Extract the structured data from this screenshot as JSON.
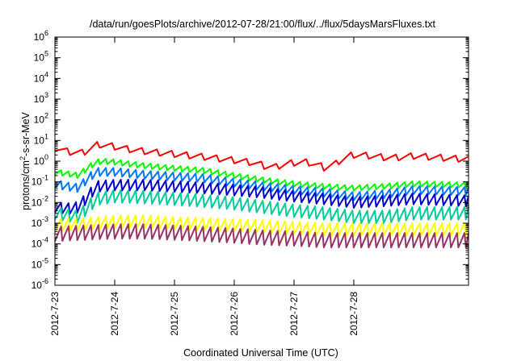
{
  "chart_data": {
    "type": "line",
    "title": "/data/run/goesPlots/archive/2012-07-28/21:00/flux/../flux/5daysMarsFluxes.txt",
    "xlabel": "Coordinated Universal Time (UTC)",
    "ylabel": {
      "pre": "protons/cm",
      "sup": "2",
      "post": "-s-sr-MeV"
    },
    "y_scale": "log",
    "ylim": [
      1e-06,
      1000000.0
    ],
    "xlim_days": [
      0,
      6.92
    ],
    "x_ticks": [
      {
        "label": "2012-7-23",
        "day": 0
      },
      {
        "label": "2012-7-24",
        "day": 1
      },
      {
        "label": "2012-7-25",
        "day": 2
      },
      {
        "label": "2012-7-26",
        "day": 3
      },
      {
        "label": "2012-7-27",
        "day": 4
      },
      {
        "label": "2012-7-28",
        "day": 5
      }
    ],
    "y_ticks": [
      {
        "base": "10",
        "exp": "-6",
        "value": 1e-06
      },
      {
        "base": "10",
        "exp": "-5",
        "value": 1e-05
      },
      {
        "base": "10",
        "exp": "-4",
        "value": 0.0001
      },
      {
        "base": "10",
        "exp": "-3",
        "value": 0.001
      },
      {
        "base": "10",
        "exp": "-2",
        "value": 0.01
      },
      {
        "base": "10",
        "exp": "-1",
        "value": 0.1
      },
      {
        "base": "10",
        "exp": "0",
        "value": 1
      },
      {
        "base": "10",
        "exp": "1",
        "value": 10
      },
      {
        "base": "10",
        "exp": "2",
        "value": 100
      },
      {
        "base": "10",
        "exp": "3",
        "value": 1000
      },
      {
        "base": "10",
        "exp": "4",
        "value": 10000
      },
      {
        "base": "10",
        "exp": "5",
        "value": 100000
      },
      {
        "base": "10",
        "exp": "6",
        "value": 1000000
      }
    ],
    "grid": false,
    "legend": "none",
    "series": [
      {
        "color": "#ff0000",
        "cycle": 0.25,
        "drop_factor": 0.5,
        "anchors": [
          [
            0.0,
            4.5
          ],
          [
            0.2,
            3.0
          ],
          [
            0.4,
            2.3
          ],
          [
            0.6,
            3.5
          ],
          [
            0.7,
            6.0
          ],
          [
            0.8,
            6.5
          ],
          [
            1.0,
            5.0
          ],
          [
            1.3,
            3.5
          ],
          [
            1.6,
            2.8
          ],
          [
            2.0,
            2.2
          ],
          [
            2.5,
            1.6
          ],
          [
            3.0,
            1.1
          ],
          [
            3.4,
            0.8
          ],
          [
            3.55,
            0.5
          ],
          [
            3.65,
            0.45
          ],
          [
            3.75,
            0.6
          ],
          [
            3.9,
            0.8
          ],
          [
            4.2,
            0.9
          ],
          [
            4.4,
            0.7
          ],
          [
            4.55,
            0.4
          ],
          [
            4.65,
            0.55
          ],
          [
            4.75,
            1.0
          ],
          [
            4.85,
            1.7
          ],
          [
            5.0,
            2.0
          ],
          [
            5.3,
            1.8
          ],
          [
            5.6,
            1.4
          ],
          [
            5.85,
            1.6
          ],
          [
            6.0,
            1.8
          ],
          [
            6.92,
            1.2
          ]
        ]
      },
      {
        "color": "#00ff00",
        "cycle": 0.125,
        "drop_factor": 0.55,
        "anchors": [
          [
            0.0,
            0.3
          ],
          [
            0.2,
            0.25
          ],
          [
            0.4,
            0.2
          ],
          [
            0.55,
            0.5
          ],
          [
            0.7,
            0.9
          ],
          [
            0.8,
            1.0
          ],
          [
            1.0,
            0.9
          ],
          [
            1.5,
            0.6
          ],
          [
            2.0,
            0.45
          ],
          [
            2.5,
            0.35
          ],
          [
            3.0,
            0.2
          ],
          [
            3.5,
            0.12
          ],
          [
            4.0,
            0.08
          ],
          [
            4.5,
            0.06
          ],
          [
            5.0,
            0.05
          ],
          [
            5.5,
            0.06
          ],
          [
            6.0,
            0.08
          ],
          [
            6.92,
            0.07
          ]
        ]
      },
      {
        "color": "#0077ff",
        "cycle": 0.125,
        "drop_factor": 0.4,
        "anchors": [
          [
            0.0,
            0.08
          ],
          [
            0.2,
            0.06
          ],
          [
            0.4,
            0.05
          ],
          [
            0.55,
            0.15
          ],
          [
            0.7,
            0.3
          ],
          [
            1.0,
            0.3
          ],
          [
            1.5,
            0.22
          ],
          [
            2.0,
            0.18
          ],
          [
            2.5,
            0.15
          ],
          [
            3.0,
            0.09
          ],
          [
            3.5,
            0.06
          ],
          [
            4.0,
            0.04
          ],
          [
            4.5,
            0.03
          ],
          [
            5.0,
            0.02
          ],
          [
            5.5,
            0.025
          ],
          [
            6.0,
            0.04
          ],
          [
            6.92,
            0.035
          ]
        ]
      },
      {
        "color": "#0000cc",
        "cycle": 0.125,
        "drop_factor": 0.3,
        "anchors": [
          [
            0.0,
            0.006
          ],
          [
            0.2,
            0.005
          ],
          [
            0.4,
            0.006
          ],
          [
            0.55,
            0.02
          ],
          [
            0.7,
            0.06
          ],
          [
            1.0,
            0.07
          ],
          [
            1.5,
            0.07
          ],
          [
            2.0,
            0.06
          ],
          [
            2.5,
            0.05
          ],
          [
            3.0,
            0.04
          ],
          [
            3.5,
            0.03
          ],
          [
            4.0,
            0.02
          ],
          [
            4.5,
            0.015
          ],
          [
            5.0,
            0.01
          ],
          [
            5.5,
            0.012
          ],
          [
            6.0,
            0.015
          ],
          [
            6.92,
            0.012
          ]
        ]
      },
      {
        "color": "#00cc99",
        "cycle": 0.125,
        "drop_factor": 0.25,
        "anchors": [
          [
            0.0,
            0.003
          ],
          [
            0.2,
            0.0025
          ],
          [
            0.4,
            0.002
          ],
          [
            0.55,
            0.006
          ],
          [
            0.7,
            0.015
          ],
          [
            1.0,
            0.02
          ],
          [
            1.5,
            0.018
          ],
          [
            2.0,
            0.015
          ],
          [
            2.5,
            0.012
          ],
          [
            3.0,
            0.009
          ],
          [
            3.5,
            0.006
          ],
          [
            4.0,
            0.004
          ],
          [
            4.5,
            0.003
          ],
          [
            5.0,
            0.002
          ],
          [
            5.5,
            0.002
          ],
          [
            6.0,
            0.003
          ],
          [
            6.92,
            0.003
          ]
        ]
      },
      {
        "color": "#ffff00",
        "cycle": 0.125,
        "drop_factor": 0.25,
        "anchors": [
          [
            0.0,
            0.0008
          ],
          [
            0.5,
            0.0009
          ],
          [
            1.0,
            0.0012
          ],
          [
            1.5,
            0.0012
          ],
          [
            2.0,
            0.001
          ],
          [
            2.5,
            0.0009
          ],
          [
            3.0,
            0.0008
          ],
          [
            3.5,
            0.0007
          ],
          [
            4.0,
            0.0006
          ],
          [
            4.5,
            0.0005
          ],
          [
            5.0,
            0.0005
          ],
          [
            5.5,
            0.0005
          ],
          [
            6.0,
            0.0005
          ],
          [
            6.92,
            0.0005
          ]
        ]
      },
      {
        "color": "#993366",
        "cycle": 0.125,
        "drop_factor": 0.2,
        "anchors": [
          [
            0.0,
            0.0003
          ],
          [
            0.5,
            0.00035
          ],
          [
            1.0,
            0.0004
          ],
          [
            1.5,
            0.0004
          ],
          [
            2.0,
            0.00035
          ],
          [
            2.5,
            0.0003
          ],
          [
            3.0,
            0.00025
          ],
          [
            3.5,
            0.0002
          ],
          [
            4.0,
            0.00018
          ],
          [
            4.5,
            0.00015
          ],
          [
            5.0,
            0.00015
          ],
          [
            5.5,
            0.00015
          ],
          [
            6.0,
            0.00015
          ],
          [
            6.92,
            0.00015
          ]
        ]
      }
    ]
  }
}
